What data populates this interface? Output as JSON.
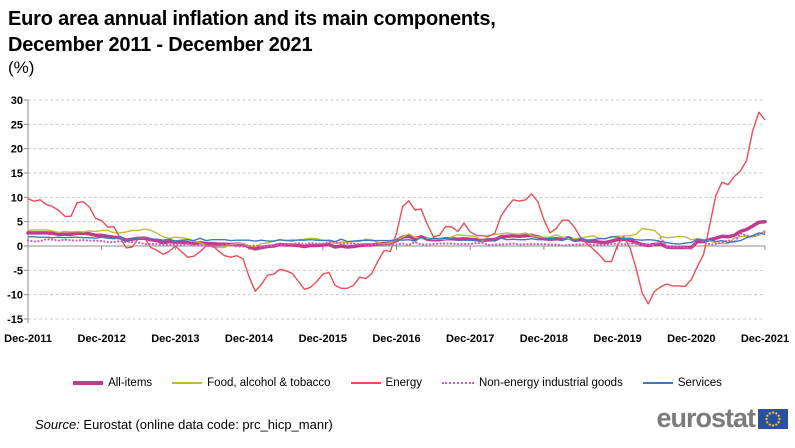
{
  "title": {
    "line1": "Euro area annual inflation and its main components,",
    "line2": "December 2011 - December 2021",
    "subtitle": "(%)"
  },
  "source": {
    "prefix": "Source:",
    "text": " Eurostat (online data code: prc_hicp_manr)"
  },
  "logo": {
    "text": "eurostat"
  },
  "colors": {
    "all_items": "#c23a8f",
    "food": "#b9bd3a",
    "energy": "#e94f57",
    "neig": "#d45cbe",
    "services": "#3f76bd",
    "gridline": "#c9c9c9",
    "axis": "#8c8c8c",
    "logo_text": "#7b7b7b",
    "flag_blue": "#2c50a0",
    "star_yellow": "#f8d012"
  },
  "chart_data": {
    "type": "line",
    "title": "Euro area annual inflation and its main components, December 2011 - December 2021",
    "unit": "%",
    "frequency": "monthly",
    "x_range": [
      "Dec-2011",
      "Dec-2021"
    ],
    "x_tick_labels": [
      "Dec-2011",
      "Dec-2012",
      "Dec-2013",
      "Dec-2014",
      "Dec-2015",
      "Dec-2016",
      "Dec-2017",
      "Dec-2018",
      "Dec-2019",
      "Dec-2020",
      "Dec-2021"
    ],
    "ylim": [
      -15,
      30
    ],
    "ytick_step": 5,
    "yticks": [
      30,
      25,
      20,
      15,
      10,
      5,
      0,
      -5,
      -10,
      -15
    ],
    "grid": "dashed-horizontal",
    "legend_position": "bottom",
    "series": [
      {
        "name": "All-items",
        "color": "#c23a8f",
        "style": "thick",
        "values": [
          2.7,
          2.7,
          2.7,
          2.7,
          2.6,
          2.4,
          2.4,
          2.4,
          2.6,
          2.6,
          2.5,
          2.2,
          2.2,
          2.0,
          1.8,
          1.7,
          1.2,
          1.4,
          1.6,
          1.6,
          1.3,
          1.1,
          0.7,
          0.9,
          0.8,
          0.8,
          0.7,
          0.5,
          0.7,
          0.5,
          0.5,
          0.4,
          0.4,
          0.3,
          0.4,
          0.3,
          -0.2,
          -0.6,
          -0.3,
          -0.1,
          0.0,
          0.3,
          0.2,
          0.2,
          0.1,
          -0.1,
          0.1,
          0.1,
          0.2,
          0.3,
          -0.2,
          0.0,
          -0.2,
          -0.1,
          0.1,
          0.2,
          0.2,
          0.4,
          0.5,
          0.6,
          1.1,
          1.8,
          2.0,
          1.5,
          1.9,
          1.4,
          1.3,
          1.3,
          1.5,
          1.5,
          1.4,
          1.5,
          1.4,
          1.3,
          1.1,
          1.3,
          1.3,
          1.9,
          2.0,
          2.1,
          2.0,
          2.1,
          2.2,
          1.9,
          1.5,
          1.4,
          1.5,
          1.4,
          1.7,
          1.2,
          1.3,
          1.0,
          1.0,
          0.8,
          0.7,
          1.0,
          1.3,
          1.4,
          1.2,
          0.7,
          0.3,
          0.1,
          0.3,
          0.4,
          -0.2,
          -0.3,
          -0.3,
          -0.3,
          -0.3,
          0.9,
          0.9,
          1.3,
          1.6,
          2.0,
          1.9,
          2.2,
          3.0,
          3.4,
          4.1,
          4.9,
          5.0
        ]
      },
      {
        "name": "Food, alcohol & tobacco",
        "color": "#b9bd3a",
        "style": "line",
        "values": [
          3.2,
          3.3,
          3.3,
          3.3,
          3.1,
          2.8,
          3.0,
          2.9,
          3.0,
          2.9,
          3.1,
          3.0,
          3.2,
          3.2,
          2.7,
          2.7,
          2.9,
          3.2,
          3.2,
          3.5,
          3.2,
          2.6,
          1.9,
          1.6,
          1.8,
          1.7,
          1.5,
          1.0,
          0.7,
          0.1,
          -0.2,
          -0.3,
          -0.3,
          0.3,
          0.5,
          0.5,
          0.0,
          -0.1,
          0.5,
          0.6,
          1.0,
          1.2,
          1.2,
          0.9,
          1.3,
          1.4,
          1.6,
          1.5,
          1.2,
          1.0,
          0.6,
          0.8,
          0.8,
          0.9,
          0.9,
          1.4,
          1.3,
          0.7,
          0.4,
          0.7,
          1.2,
          1.8,
          2.5,
          1.8,
          1.5,
          1.5,
          1.4,
          1.4,
          1.4,
          1.9,
          2.3,
          2.2,
          2.1,
          1.9,
          1.0,
          2.1,
          2.4,
          2.5,
          2.7,
          2.5,
          2.4,
          2.7,
          2.2,
          1.9,
          1.8,
          1.8,
          2.3,
          1.8,
          1.5,
          1.5,
          1.6,
          1.9,
          2.1,
          1.6,
          1.5,
          1.9,
          2.0,
          2.1,
          2.1,
          2.4,
          3.6,
          3.4,
          3.2,
          2.0,
          1.7,
          1.8,
          2.0,
          1.9,
          1.3,
          1.5,
          1.3,
          1.1,
          0.6,
          0.5,
          0.5,
          1.6,
          2.0,
          2.0,
          1.9,
          2.2,
          3.2
        ]
      },
      {
        "name": "Energy",
        "color": "#e94f57",
        "style": "line",
        "values": [
          9.7,
          9.2,
          9.5,
          8.5,
          8.1,
          7.3,
          6.1,
          6.1,
          8.9,
          9.1,
          8.0,
          5.7,
          5.2,
          3.9,
          3.9,
          1.7,
          -0.4,
          -0.2,
          1.6,
          1.6,
          -0.3,
          -0.9,
          -1.7,
          -1.1,
          0.0,
          -1.2,
          -2.3,
          -2.1,
          -1.2,
          0.0,
          0.1,
          -1.0,
          -2.0,
          -2.3,
          -2.0,
          -2.6,
          -6.3,
          -9.3,
          -7.9,
          -6.0,
          -5.8,
          -4.8,
          -5.1,
          -5.6,
          -7.2,
          -8.9,
          -8.5,
          -7.3,
          -5.8,
          -5.4,
          -8.1,
          -8.7,
          -8.7,
          -8.1,
          -6.4,
          -6.7,
          -5.6,
          -3.0,
          -0.9,
          -1.1,
          2.6,
          8.1,
          9.3,
          7.4,
          7.6,
          4.5,
          1.9,
          2.2,
          4.0,
          3.9,
          3.0,
          4.7,
          2.9,
          2.2,
          2.1,
          2.0,
          2.6,
          6.1,
          8.0,
          9.5,
          9.2,
          9.5,
          10.7,
          9.1,
          5.4,
          2.7,
          3.6,
          5.3,
          5.3,
          3.8,
          1.7,
          0.5,
          -0.6,
          -1.8,
          -3.2,
          -3.2,
          0.2,
          1.9,
          -0.3,
          -4.5,
          -9.7,
          -11.9,
          -9.3,
          -8.4,
          -7.8,
          -8.2,
          -8.2,
          -8.3,
          -6.9,
          -4.2,
          -1.7,
          4.3,
          10.4,
          13.1,
          12.6,
          14.3,
          15.4,
          17.6,
          23.7,
          27.5,
          25.9
        ]
      },
      {
        "name": "Non-energy industrial goods",
        "color": "#d45cbe",
        "style": "dotted",
        "values": [
          1.2,
          0.9,
          1.0,
          1.4,
          1.3,
          1.1,
          1.3,
          1.2,
          1.1,
          1.2,
          1.1,
          1.1,
          1.0,
          0.8,
          0.8,
          1.0,
          0.8,
          0.8,
          0.7,
          0.4,
          0.4,
          0.4,
          0.3,
          0.2,
          0.3,
          0.2,
          0.4,
          0.2,
          0.1,
          0.0,
          -0.1,
          0.0,
          0.3,
          0.2,
          -0.1,
          -0.1,
          0.0,
          0.1,
          -0.1,
          0.0,
          0.1,
          0.2,
          0.3,
          0.4,
          0.6,
          0.3,
          0.6,
          0.5,
          0.5,
          0.7,
          0.7,
          0.5,
          0.5,
          0.5,
          0.4,
          0.4,
          0.3,
          0.3,
          0.3,
          0.3,
          0.3,
          0.5,
          0.2,
          0.8,
          0.3,
          0.3,
          0.4,
          0.5,
          0.5,
          0.5,
          0.4,
          0.4,
          0.4,
          0.6,
          0.6,
          0.2,
          0.3,
          0.3,
          0.4,
          0.5,
          0.3,
          0.4,
          0.4,
          0.4,
          0.4,
          0.3,
          0.3,
          0.1,
          0.2,
          0.3,
          0.3,
          0.4,
          0.3,
          0.2,
          0.3,
          0.4,
          0.5,
          0.3,
          0.5,
          0.5,
          0.3,
          0.2,
          0.2,
          1.6,
          -0.1,
          -0.3,
          -0.1,
          -0.3,
          -0.5,
          1.5,
          1.0,
          0.3,
          0.4,
          0.7,
          1.2,
          0.7,
          2.6,
          2.1,
          2.0,
          2.4,
          2.9
        ]
      },
      {
        "name": "Services",
        "color": "#3f76bd",
        "style": "line",
        "values": [
          1.9,
          1.9,
          1.8,
          1.8,
          1.7,
          1.8,
          1.7,
          1.8,
          1.8,
          1.7,
          1.7,
          1.6,
          1.8,
          1.6,
          1.5,
          1.8,
          1.1,
          1.5,
          1.4,
          1.4,
          1.4,
          1.4,
          1.2,
          1.4,
          1.0,
          1.2,
          1.3,
          1.1,
          1.6,
          1.1,
          1.3,
          1.3,
          1.3,
          1.1,
          1.2,
          1.2,
          1.2,
          1.0,
          1.2,
          1.0,
          1.0,
          1.3,
          1.1,
          1.2,
          1.2,
          1.2,
          1.3,
          1.2,
          1.1,
          1.2,
          0.9,
          1.4,
          0.9,
          1.0,
          1.1,
          1.2,
          1.1,
          1.1,
          1.1,
          1.1,
          1.3,
          1.2,
          1.3,
          1.0,
          1.8,
          1.3,
          1.6,
          1.5,
          1.6,
          1.5,
          1.2,
          1.2,
          1.2,
          1.2,
          1.3,
          1.5,
          1.0,
          1.6,
          1.3,
          1.4,
          1.3,
          1.3,
          1.5,
          1.3,
          1.3,
          1.6,
          1.4,
          1.1,
          1.9,
          1.0,
          1.6,
          1.2,
          1.3,
          1.5,
          1.5,
          1.9,
          1.8,
          1.5,
          1.6,
          1.3,
          1.2,
          1.3,
          1.2,
          0.9,
          0.7,
          0.5,
          0.4,
          0.6,
          0.7,
          1.4,
          1.2,
          1.3,
          0.9,
          1.1,
          0.7,
          0.9,
          1.1,
          1.7,
          2.1,
          2.7,
          2.4
        ]
      }
    ]
  }
}
